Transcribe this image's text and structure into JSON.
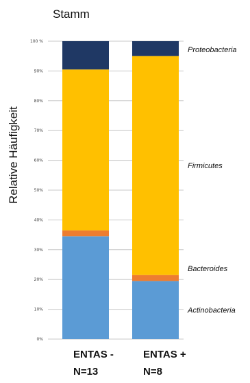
{
  "chart_data": {
    "type": "bar",
    "stacked": true,
    "percent": true,
    "title": "Stamm",
    "ylabel": "Relative Häufigkeit",
    "ylim": [
      0,
      100
    ],
    "yticks": [
      0,
      10,
      20,
      30,
      40,
      50,
      60,
      70,
      80,
      90,
      100
    ],
    "ytick_labels": [
      "0%",
      "10%",
      "20%",
      "30%",
      "40%",
      "50%",
      "60%",
      "70%",
      "80%",
      "90%",
      "100 %"
    ],
    "categories": [
      {
        "line1": "ENTAS -",
        "line2": "N=13"
      },
      {
        "line1": "ENTAS +",
        "line2": "N=8"
      }
    ],
    "series": [
      {
        "name": "Actinobacteria",
        "color": "#5b9bd5",
        "values": [
          34.5,
          19.5
        ]
      },
      {
        "name": "Bacteroides",
        "color": "#ed7d31",
        "values": [
          2.0,
          2.0
        ]
      },
      {
        "name": "Firmicutes",
        "color": "#ffc000",
        "values": [
          54.0,
          73.5
        ]
      },
      {
        "name": "Proteobacteria",
        "color": "#1f3864",
        "values": [
          9.5,
          5.0
        ]
      }
    ],
    "grid": true,
    "legend": "right"
  }
}
